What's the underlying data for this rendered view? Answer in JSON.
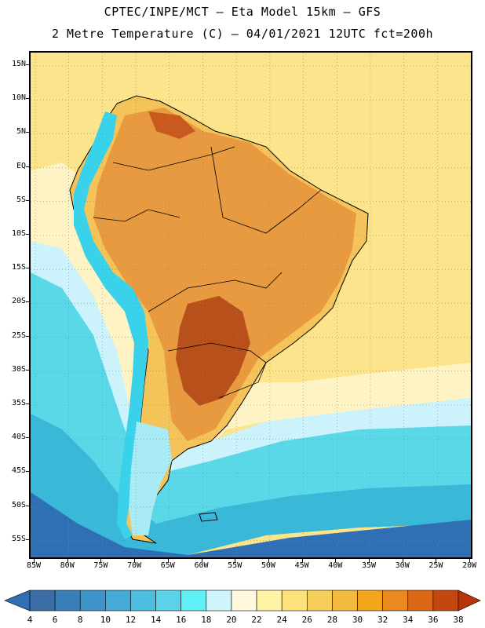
{
  "header": {
    "line1": "CPTEC/INPE/MCT –  Eta Model 15km – GFS",
    "line2": "2 Metre Temperature (C) – 04/01/2021 12UTC fct=200h"
  },
  "map": {
    "lat_labels": [
      "15N",
      "10N",
      "5N",
      "EQ",
      "5S",
      "10S",
      "15S",
      "20S",
      "25S",
      "30S",
      "35S",
      "40S",
      "45S",
      "50S",
      "55S"
    ],
    "lon_labels": [
      "85W",
      "80W",
      "75W",
      "70W",
      "65W",
      "60W",
      "55W",
      "50W",
      "45W",
      "40W",
      "35W",
      "30W",
      "25W",
      "20W"
    ],
    "ocean_colors": {
      "warm": "#fbe48c",
      "mid": "#fdf3c4",
      "cool": "#ccf3fb",
      "cold": "#5ad8e8",
      "colder": "#3ab8d8",
      "coldest": "#2f6fb3"
    },
    "land_colors": {
      "hot": "#b8501c",
      "warm": "#e79a40",
      "mild": "#f4c35a",
      "andes": "#3ad2ea",
      "patagonia": "#a8ebf5"
    }
  },
  "colorbar": {
    "labels": [
      "4",
      "6",
      "8",
      "10",
      "12",
      "14",
      "16",
      "18",
      "20",
      "22",
      "24",
      "26",
      "28",
      "30",
      "32",
      "34",
      "36",
      "38"
    ],
    "colors": [
      "#3a6ea5",
      "#3b7fb8",
      "#3e93c8",
      "#45aad6",
      "#4dbde0",
      "#5ad3ea",
      "#5ff0f5",
      "#cdf5fa",
      "#fff8dc",
      "#fff3a6",
      "#fce27a",
      "#f6cf5a",
      "#f2bb40",
      "#f3a51c",
      "#ea8a1e",
      "#dc6815",
      "#c4470d"
    ],
    "low_end_color": "#2f6fb3",
    "high_end_color": "#b83508"
  }
}
